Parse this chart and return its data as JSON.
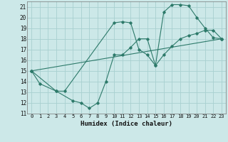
{
  "xlabel": "Humidex (Indice chaleur)",
  "xlim": [
    -0.5,
    23.5
  ],
  "ylim": [
    11,
    21.5
  ],
  "yticks": [
    11,
    12,
    13,
    14,
    15,
    16,
    17,
    18,
    19,
    20,
    21
  ],
  "xticks": [
    0,
    1,
    2,
    3,
    4,
    5,
    6,
    7,
    8,
    9,
    10,
    11,
    12,
    13,
    14,
    15,
    16,
    17,
    18,
    19,
    20,
    21,
    22,
    23
  ],
  "bg_color": "#cce8e8",
  "grid_color": "#a8d0d0",
  "line_color": "#2d7a6a",
  "line1_x": [
    0,
    1,
    3,
    4,
    10,
    11,
    12,
    13,
    14,
    15,
    16,
    17,
    18,
    19,
    20,
    21,
    22,
    23
  ],
  "line1_y": [
    15,
    13.8,
    13.1,
    13.1,
    19.5,
    19.6,
    19.5,
    17.0,
    16.5,
    15.5,
    20.5,
    21.2,
    21.2,
    21.1,
    20.0,
    19.0,
    18.1,
    18.0
  ],
  "line2_x": [
    0,
    3,
    5,
    6,
    7,
    8,
    9,
    10,
    11,
    12,
    13,
    14,
    15,
    16,
    17,
    18,
    19,
    20,
    21,
    22,
    23
  ],
  "line2_y": [
    15,
    13.1,
    12.2,
    12.0,
    11.5,
    12.0,
    14.0,
    16.5,
    16.5,
    17.2,
    18.0,
    18.0,
    15.5,
    16.5,
    17.3,
    18.0,
    18.3,
    18.5,
    18.8,
    18.8,
    18.0
  ],
  "line3_x": [
    0,
    23
  ],
  "line3_y": [
    15.0,
    18.0
  ]
}
